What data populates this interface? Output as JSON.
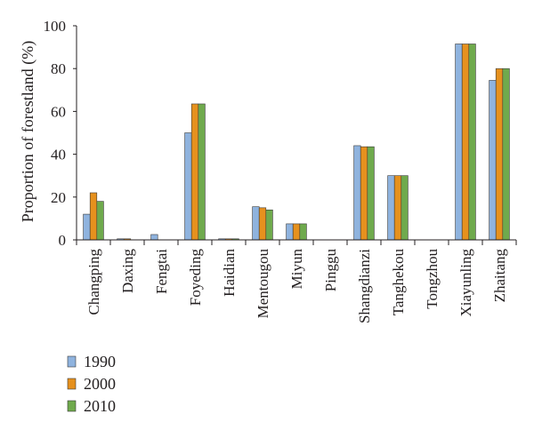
{
  "chart_data": {
    "type": "bar",
    "title": "",
    "xlabel": "",
    "ylabel": "Proportion of forestland (%)",
    "ylim": [
      0,
      100
    ],
    "yticks": [
      0,
      20,
      40,
      60,
      80,
      100
    ],
    "grid": false,
    "legend_position": "bottom-left",
    "categories": [
      "Changping",
      "Daxing",
      "Fengtai",
      "Foyeding",
      "Haidian",
      "Mentougou",
      "Miyun",
      "Pinggu",
      "Shangdianzi",
      "Tanghekou",
      "Tongzhou",
      "Xiayunling",
      "Zhaitang"
    ],
    "series": [
      {
        "name": "1990",
        "color": "#8fb3de",
        "values": [
          12,
          0.5,
          2.5,
          50,
          0.5,
          15.5,
          7.5,
          0,
          44,
          30,
          0,
          91.5,
          74.5
        ]
      },
      {
        "name": "2000",
        "color": "#e6911e",
        "values": [
          22,
          0.5,
          0,
          63.5,
          0.5,
          15,
          7.5,
          0,
          43.5,
          30,
          0,
          91.5,
          80
        ]
      },
      {
        "name": "2010",
        "color": "#6faa4d",
        "values": [
          18,
          0,
          0,
          63.5,
          0.5,
          14,
          7.5,
          0,
          43.5,
          30,
          0,
          91.5,
          80
        ]
      }
    ]
  }
}
